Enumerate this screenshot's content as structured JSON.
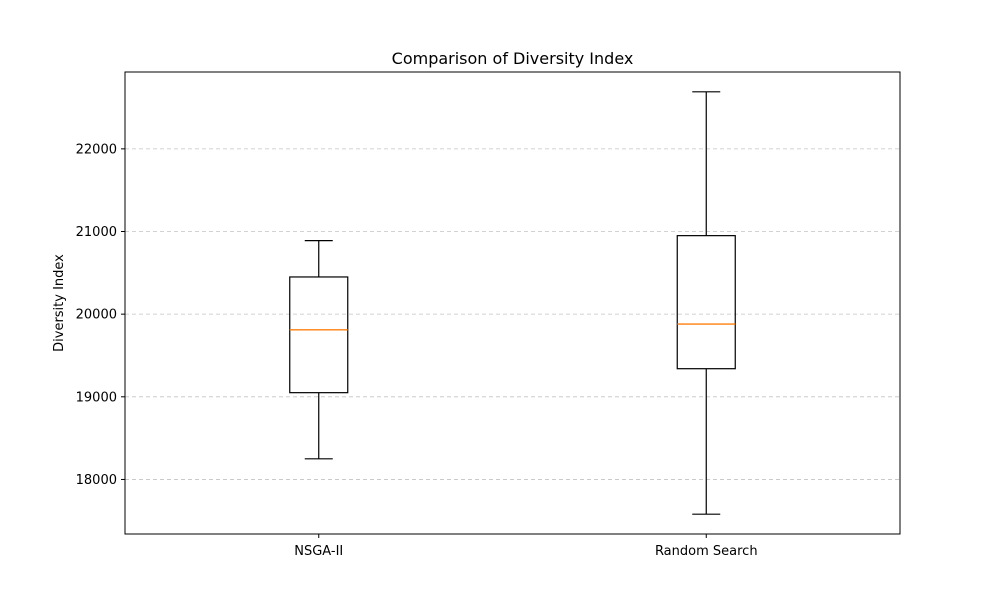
{
  "chart_data": {
    "type": "box",
    "title": "Comparison of Diversity Index",
    "xlabel": "",
    "ylabel": "Diversity Index",
    "ylim": [
      17340,
      22930
    ],
    "yticks": [
      18000,
      19000,
      20000,
      21000,
      22000
    ],
    "grid": {
      "y": true,
      "x": false,
      "style": "dashed"
    },
    "categories": [
      "NSGA-II",
      "Random Search"
    ],
    "boxes": [
      {
        "whisker_low": 18250,
        "q1": 19050,
        "median": 19810,
        "q3": 20450,
        "whisker_high": 20890
      },
      {
        "whisker_low": 17580,
        "q1": 19340,
        "median": 19880,
        "q3": 20950,
        "whisker_high": 22690
      }
    ],
    "colors": {
      "box": "#000000",
      "median": "#ff7f0e",
      "grid": "#b0b0b0"
    }
  }
}
